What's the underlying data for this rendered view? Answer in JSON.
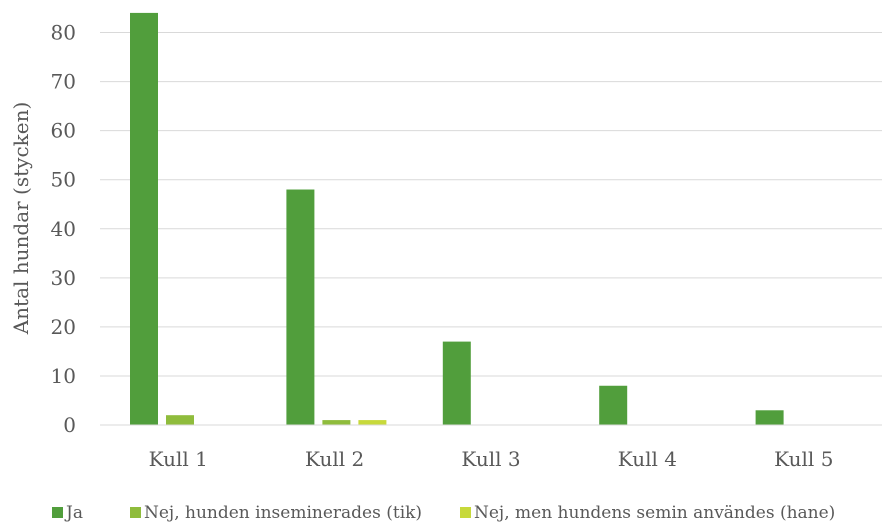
{
  "chart_data": {
    "type": "bar",
    "title": "",
    "xlabel": "",
    "ylabel": "Antal hundar (stycken)",
    "ylim": [
      0,
      85
    ],
    "yticks": [
      0,
      10,
      20,
      30,
      40,
      50,
      60,
      70,
      80
    ],
    "grid": true,
    "legend_position": "bottom",
    "categories": [
      "Kull 1",
      "Kull 2",
      "Kull 3",
      "Kull 4",
      "Kull 5"
    ],
    "series": [
      {
        "name": "Ja",
        "color": "#519e3c",
        "values": [
          84,
          48,
          17,
          8,
          3
        ]
      },
      {
        "name": "Nej, hunden inseminerades (tik)",
        "color": "#8fbc3c",
        "values": [
          2,
          1,
          0,
          0,
          0
        ]
      },
      {
        "name": "Nej, men hundens semin användes (hane)",
        "color": "#c7d93b",
        "values": [
          0,
          1,
          0,
          0,
          0
        ]
      }
    ]
  }
}
